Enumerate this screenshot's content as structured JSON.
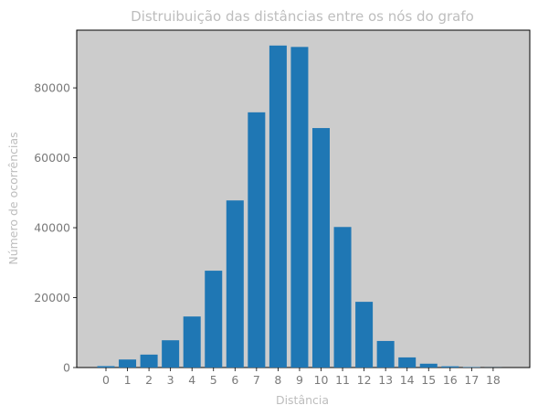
{
  "chart_data": {
    "type": "bar",
    "title": "Distruibuição das distâncias entre os nós do grafo",
    "xlabel": "Distância",
    "ylabel": "Número de ocorrências",
    "categories": [
      "0",
      "1",
      "2",
      "3",
      "4",
      "5",
      "6",
      "7",
      "8",
      "9",
      "10",
      "11",
      "12",
      "13",
      "14",
      "15",
      "16",
      "17",
      "18"
    ],
    "values": [
      400,
      2300,
      3700,
      7800,
      14600,
      27700,
      47800,
      73000,
      92100,
      91700,
      68500,
      40200,
      18800,
      7600,
      2900,
      1100,
      350,
      120,
      30
    ],
    "yticks": [
      0,
      20000,
      40000,
      60000,
      80000
    ],
    "ylim": [
      0,
      96500
    ],
    "grid": false,
    "colors": {
      "bar": "#1f77b4",
      "plot_background": "#cccccc",
      "axes_edge": "#000000",
      "title": "#bdbdbd",
      "axis_label": "#bdbdbd",
      "tick_label": "#7a7a7a"
    }
  }
}
